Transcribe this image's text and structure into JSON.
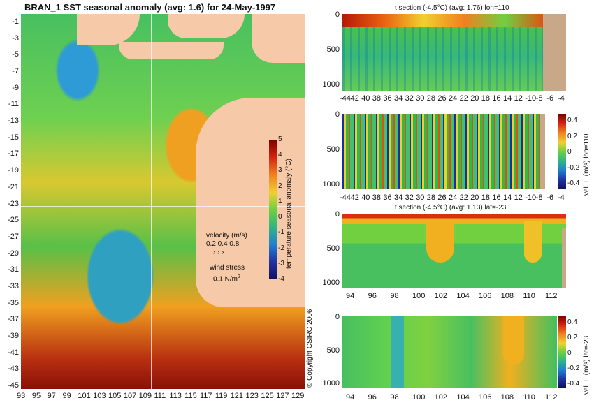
{
  "map": {
    "title": "BRAN_1  SST seasonal anomaly  (avg: 1.6)  for 24-May-1997",
    "yticks": [
      "-1",
      "-3",
      "-5",
      "-7",
      "-9",
      "-11",
      "-13",
      "-15",
      "-17",
      "-19",
      "-21",
      "-23",
      "-25",
      "-27",
      "-29",
      "-31",
      "-33",
      "-35",
      "-37",
      "-39",
      "-41",
      "-43",
      "-45"
    ],
    "xticks": [
      "93",
      "95",
      "97",
      "99",
      "101",
      "103",
      "105",
      "107",
      "109",
      "111",
      "113",
      "115",
      "117",
      "119",
      "121",
      "123",
      "125",
      "127",
      "129"
    ],
    "colorbar_ticks": [
      "5",
      "4",
      "3",
      "2",
      "1",
      "0",
      "-1",
      "-2",
      "-3",
      "-4"
    ],
    "colorbar_label": "temperature seasonal anomaly (°C)",
    "velocity_label": "velocity (m/s)",
    "velocity_values": "0.2 0.4 0.8",
    "wind_label": "wind stress",
    "wind_value": "0.1 N/m",
    "wind_exp": "2",
    "copyright": "© Copyright CSIRO 2006"
  },
  "panel1": {
    "title": "t section (-4.5°C) (avg: 1.76) lon=110",
    "xticks": [
      "-44",
      "42",
      "40",
      "38",
      "36",
      "34",
      "32",
      "30",
      "28",
      "26",
      "24",
      "22",
      "20",
      "18",
      "16",
      "14",
      "12",
      "-10",
      "-8",
      "-6",
      "-4"
    ],
    "yticks": [
      "0",
      "500",
      "1000"
    ]
  },
  "panel2": {
    "xticks": [
      "-44",
      "42",
      "40",
      "38",
      "36",
      "34",
      "32",
      "30",
      "28",
      "26",
      "24",
      "22",
      "20",
      "18",
      "16",
      "14",
      "12",
      "-10",
      "-8",
      "-6",
      "-4"
    ],
    "yticks": [
      "0",
      "500",
      "1000"
    ],
    "colorbar_ticks": [
      "0.4",
      "0.2",
      "0",
      "-0.2",
      "-0.4"
    ],
    "colorbar_label": "vel. E (m/s) lon=110"
  },
  "panel3": {
    "title": "t section (-4.5°C) (avg: 1.13) lat=-23",
    "xticks": [
      "94",
      "96",
      "98",
      "100",
      "102",
      "104",
      "106",
      "108",
      "110",
      "112"
    ],
    "yticks": [
      "0",
      "500",
      "1000"
    ]
  },
  "panel4": {
    "xticks": [
      "94",
      "96",
      "98",
      "100",
      "102",
      "104",
      "106",
      "108",
      "110",
      "112"
    ],
    "yticks": [
      "0",
      "500",
      "1000"
    ],
    "colorbar_ticks": [
      "0.4",
      "0.2",
      "0",
      "-0.2",
      "-0.4"
    ],
    "colorbar_label": "vel. E (m/s) lat=-23"
  },
  "chart_data": [
    {
      "type": "heatmap",
      "title": "BRAN_1  SST seasonal anomaly  (avg: 1.6)  for 24-May-1997",
      "xlim": [
        93,
        130
      ],
      "ylim": [
        -45,
        0
      ],
      "colorbar_range": [
        -4,
        5
      ],
      "colorbar_label": "temperature seasonal anomaly (°C)"
    },
    {
      "type": "heatmap",
      "title": "t section (-4.5°C) (avg: 1.76) lon=110",
      "xlim": [
        -45,
        -3
      ],
      "ylim": [
        1050,
        0
      ]
    },
    {
      "type": "heatmap",
      "xlim": [
        -45,
        -3
      ],
      "ylim": [
        1050,
        0
      ],
      "colorbar_range": [
        -0.4,
        0.4
      ],
      "colorbar_label": "vel. E (m/s) lon=110"
    },
    {
      "type": "heatmap",
      "title": "t section (-4.5°C) (avg: 1.13) lat=-23",
      "xlim": [
        93,
        114
      ],
      "ylim": [
        1050,
        0
      ]
    },
    {
      "type": "heatmap",
      "xlim": [
        93,
        114
      ],
      "ylim": [
        1050,
        0
      ],
      "colorbar_range": [
        -0.4,
        0.4
      ],
      "colorbar_label": "vel. E (m/s) lat=-23"
    }
  ]
}
